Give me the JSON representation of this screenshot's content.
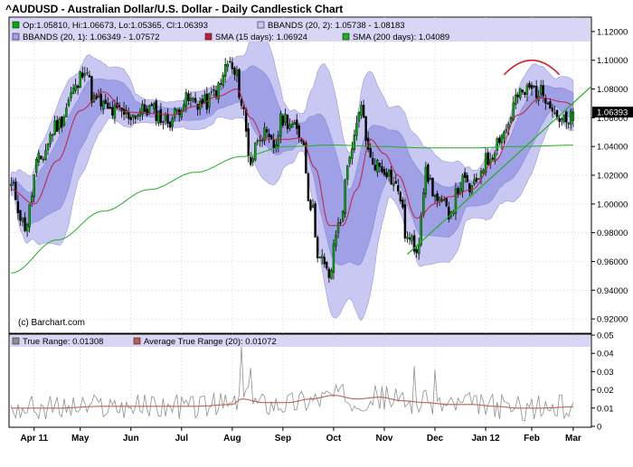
{
  "header": {
    "title": "^AUDUSD - Australian Dollar/U.S. Dollar - Daily Candlestick Chart"
  },
  "legend": {
    "ohlc": "Op:1.05810, Hi:1.06673, Lo:1.05365, Cl:1.06393",
    "bb2": "BBANDS (20, 2): 1.05738 - 1.08183",
    "bb1": "BBANDS (20, 1): 1.06349 - 1.07572",
    "sma15": "SMA (15 days): 1.06924",
    "sma200": "SMA (200 days): 1.04089",
    "tr": "True Range: 0.01308",
    "atr": "Average True Range (20): 0.01072"
  },
  "watermark": "(c) Barchart.com",
  "last_price_label": "1.06393",
  "colors": {
    "up": "#00b000",
    "down": "#000000",
    "sma15": "#c02040",
    "sma200": "#20b020",
    "band_outer": "#c8c8f2",
    "band_inner": "#a0a0e6",
    "legend_bg": "#d7d7f5",
    "trendline": "#20b020",
    "arc": "#d02020",
    "tr_line": "#909090",
    "atr_line": "#c06050"
  },
  "chart_data": [
    {
      "type": "candlestick",
      "title": "^AUDUSD - Australian Dollar/U.S. Dollar - Daily Candlestick Chart",
      "ylim": [
        0.91,
        1.13
      ],
      "y_ticks": [
        "1.12000",
        "1.10000",
        "1.08000",
        "1.06000",
        "1.04000",
        "1.02000",
        "1.00000",
        "0.98000",
        "0.96000",
        "0.94000",
        "0.92000"
      ],
      "x_ticks": [
        "Apr 11",
        "May",
        "Jun",
        "Jul",
        "Aug",
        "Sep",
        "Oct",
        "Nov",
        "Dec",
        "Jan 12",
        "Feb",
        "Mar"
      ],
      "close_path": [
        [
          0,
          1.012
        ],
        [
          6,
          0.985
        ],
        [
          12,
          1.03
        ],
        [
          20,
          1.055
        ],
        [
          28,
          1.08
        ],
        [
          32,
          1.096
        ],
        [
          36,
          1.072
        ],
        [
          44,
          1.064
        ],
        [
          52,
          1.062
        ],
        [
          60,
          1.066
        ],
        [
          68,
          1.058
        ],
        [
          76,
          1.072
        ],
        [
          84,
          1.07
        ],
        [
          90,
          1.08
        ],
        [
          94,
          1.098
        ],
        [
          98,
          1.088
        ],
        [
          100,
          1.07
        ],
        [
          104,
          1.03
        ],
        [
          108,
          1.05
        ],
        [
          114,
          1.04
        ],
        [
          118,
          1.06
        ],
        [
          126,
          1.048
        ],
        [
          130,
          1.0
        ],
        [
          134,
          0.962
        ],
        [
          138,
          0.95
        ],
        [
          142,
          0.985
        ],
        [
          148,
          1.04
        ],
        [
          152,
          1.065
        ],
        [
          156,
          1.03
        ],
        [
          162,
          1.025
        ],
        [
          168,
          1.01
        ],
        [
          172,
          0.975
        ],
        [
          176,
          0.97
        ],
        [
          180,
          1.02
        ],
        [
          186,
          1.0
        ],
        [
          190,
          0.995
        ],
        [
          196,
          1.015
        ],
        [
          200,
          1.01
        ],
        [
          206,
          1.03
        ],
        [
          214,
          1.05
        ],
        [
          220,
          1.075
        ],
        [
          226,
          1.08
        ],
        [
          232,
          1.076
        ],
        [
          238,
          1.06
        ],
        [
          242,
          1.055
        ],
        [
          244,
          1.064
        ]
      ],
      "sma15_path": [
        [
          0,
          1.01
        ],
        [
          10,
          1.0
        ],
        [
          20,
          1.03
        ],
        [
          30,
          1.065
        ],
        [
          40,
          1.078
        ],
        [
          50,
          1.064
        ],
        [
          60,
          1.063
        ],
        [
          70,
          1.062
        ],
        [
          80,
          1.068
        ],
        [
          90,
          1.075
        ],
        [
          98,
          1.08
        ],
        [
          104,
          1.06
        ],
        [
          110,
          1.045
        ],
        [
          120,
          1.045
        ],
        [
          126,
          1.046
        ],
        [
          132,
          1.025
        ],
        [
          138,
          0.985
        ],
        [
          144,
          0.985
        ],
        [
          150,
          1.01
        ],
        [
          156,
          1.045
        ],
        [
          162,
          1.035
        ],
        [
          168,
          1.02
        ],
        [
          176,
          0.99
        ],
        [
          184,
          1.0
        ],
        [
          190,
          1.005
        ],
        [
          200,
          1.01
        ],
        [
          210,
          1.03
        ],
        [
          220,
          1.062
        ],
        [
          230,
          1.074
        ],
        [
          240,
          1.071
        ],
        [
          244,
          1.069
        ]
      ],
      "sma200_path": [
        [
          0,
          0.952
        ],
        [
          20,
          0.975
        ],
        [
          40,
          0.995
        ],
        [
          60,
          1.01
        ],
        [
          80,
          1.022
        ],
        [
          100,
          1.033
        ],
        [
          120,
          1.04
        ],
        [
          140,
          1.041
        ],
        [
          160,
          1.04
        ],
        [
          180,
          1.039
        ],
        [
          200,
          1.039
        ],
        [
          220,
          1.04
        ],
        [
          244,
          1.0409
        ]
      ],
      "trendline": [
        [
          172,
          0.965
        ],
        [
          252,
          1.082
        ]
      ],
      "arc": [
        [
          214,
          1.09
        ],
        [
          226,
          1.1
        ],
        [
          238,
          1.09
        ]
      ],
      "last": {
        "open": 1.0581,
        "high": 1.06673,
        "low": 1.05365,
        "close": 1.06393
      }
    },
    {
      "type": "line",
      "ylim": [
        0,
        0.05
      ],
      "y_ticks": [
        "0.05",
        "0.04",
        "0.03",
        "0.02",
        "0.01",
        "0"
      ],
      "series": [
        {
          "name": "True Range",
          "last": 0.01308
        },
        {
          "name": "Average True Range (20)",
          "last": 0.01072,
          "path": [
            [
              0,
              0.01
            ],
            [
              20,
              0.01
            ],
            [
              40,
              0.011
            ],
            [
              60,
              0.011
            ],
            [
              80,
              0.011
            ],
            [
              96,
              0.012
            ],
            [
              100,
              0.015
            ],
            [
              110,
              0.013
            ],
            [
              120,
              0.013
            ],
            [
              130,
              0.015
            ],
            [
              140,
              0.017
            ],
            [
              150,
              0.015
            ],
            [
              160,
              0.016
            ],
            [
              170,
              0.014
            ],
            [
              180,
              0.013
            ],
            [
              190,
              0.012
            ],
            [
              200,
              0.012
            ],
            [
              210,
              0.011
            ],
            [
              220,
              0.01
            ],
            [
              230,
              0.01
            ],
            [
              244,
              0.0107
            ]
          ]
        }
      ]
    }
  ]
}
